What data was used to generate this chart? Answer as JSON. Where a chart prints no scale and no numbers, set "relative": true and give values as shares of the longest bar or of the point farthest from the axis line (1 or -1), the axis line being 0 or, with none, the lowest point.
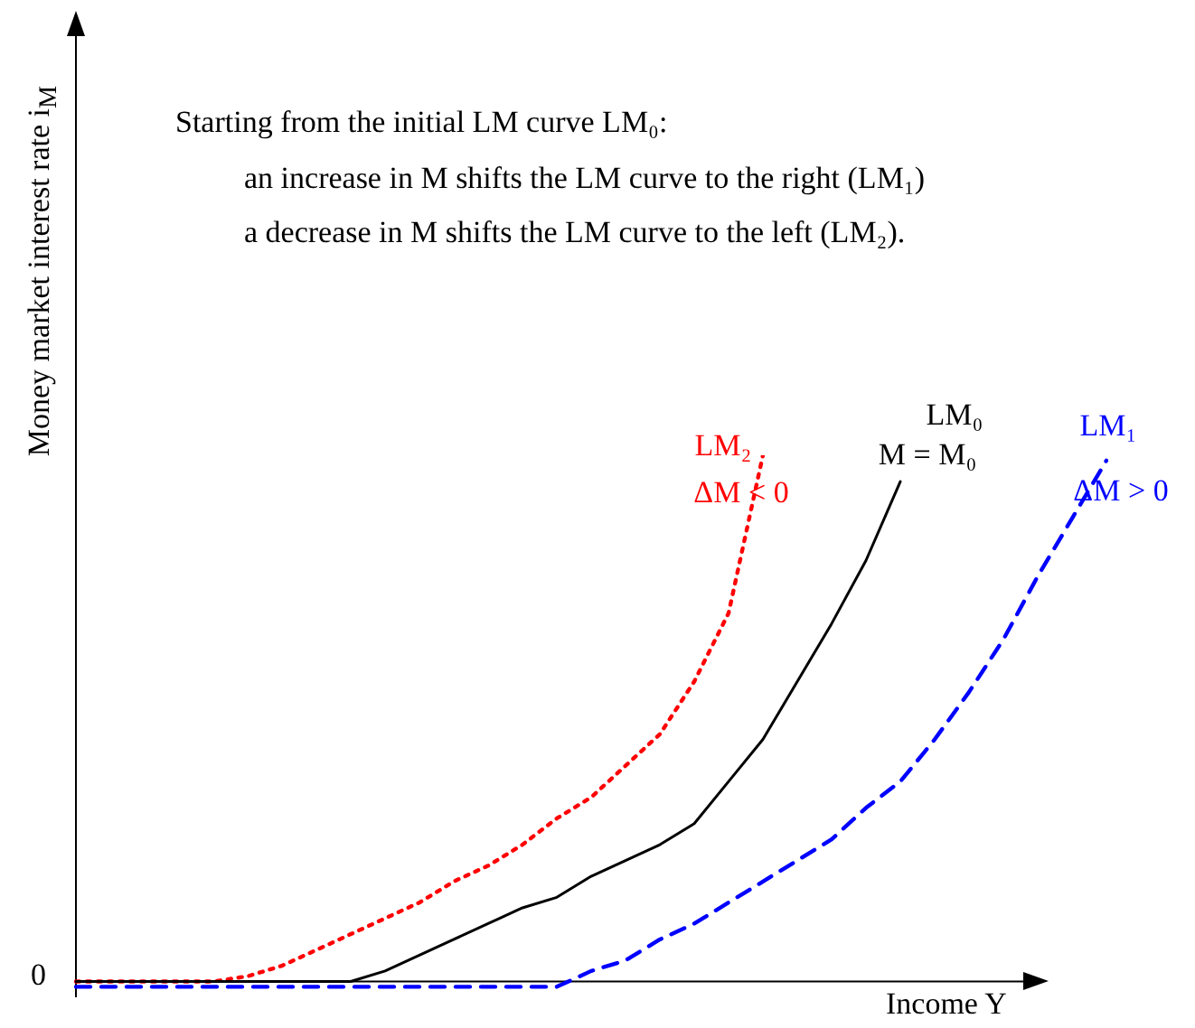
{
  "chart_data": {
    "type": "line",
    "relative": true,
    "xlabel": "Income Y",
    "ylabel": "Money market interest rate i$_{M}$",
    "legend": false,
    "marker": "none",
    "categories": [
      null,
      null,
      null,
      null,
      null,
      null,
      null,
      null,
      null,
      null,
      null,
      null,
      null,
      null,
      null,
      null,
      null,
      null,
      null,
      null,
      null,
      null,
      null,
      null,
      null,
      null,
      null,
      null,
      null,
      null,
      null
    ],
    "series": [
      {
        "name": "LM₂",
        "color": "#ff0000",
        "line_style": "dotted",
        "values": [
          0,
          0,
          0,
          0,
          0,
          0.01,
          0.03,
          0.06,
          0.09,
          0.12,
          0.15,
          0.19,
          0.22,
          0.26,
          0.31,
          0.35,
          0.41,
          0.47,
          0.57,
          0.7,
          1,
          null,
          null,
          null,
          null,
          null,
          null,
          null,
          null,
          null,
          null
        ]
      },
      {
        "name": "LM₀",
        "color": "#000000",
        "line_style": "solid",
        "values": [
          0,
          0,
          0,
          0,
          0,
          0,
          0,
          0,
          0,
          0.02,
          0.05,
          0.08,
          0.11,
          0.14,
          0.16,
          0.2,
          0.23,
          0.26,
          0.3,
          0.38,
          0.46,
          0.57,
          0.68,
          0.8,
          0.95,
          null,
          null,
          null,
          null,
          null,
          null
        ]
      },
      {
        "name": "LM₁",
        "color": "#0000ff",
        "line_style": "dashed",
        "values": [
          -0.01,
          -0.01,
          -0.01,
          -0.01,
          -0.01,
          -0.01,
          -0.01,
          -0.01,
          -0.01,
          -0.01,
          -0.01,
          -0.01,
          -0.01,
          -0.01,
          -0.01,
          0.02,
          0.04,
          0.08,
          0.11,
          0.15,
          0.19,
          0.23,
          0.27,
          0.33,
          0.38,
          0.46,
          0.55,
          0.65,
          0.77,
          0.88,
          0.99
        ]
      }
    ],
    "annotations": [
      "Starting from the initial LM curve LM₀:",
      "an increase in M shifts the LM curve to the right (LM₁)",
      "a decrease in M shifts the LM curve to the left (LM₂).",
      "M = M₀",
      "ΔM < 0",
      "ΔM > 0",
      "0"
    ]
  }
}
